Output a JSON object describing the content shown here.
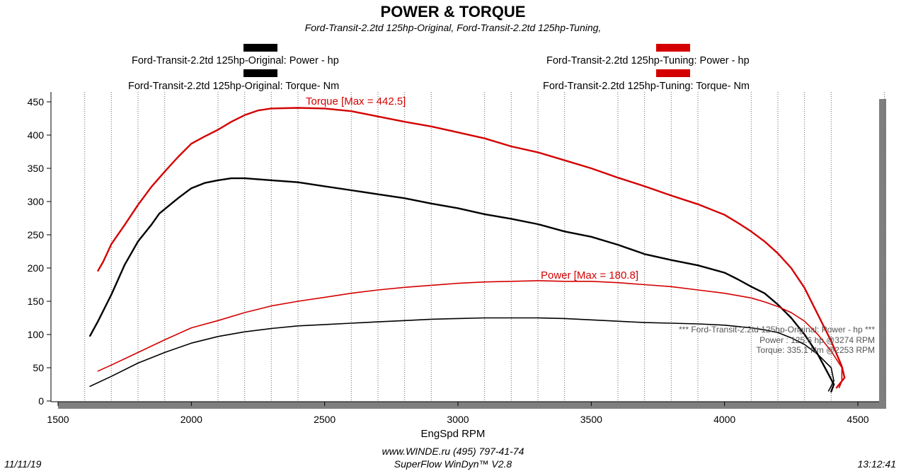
{
  "chart_data": {
    "type": "line",
    "title": "POWER & TORQUE",
    "subtitle": "Ford-Transit-2.2td 125hp-Original, Ford-Transit-2.2td 125hp-Tuning,",
    "xlabel": "EngSpd  RPM",
    "ylabel": "",
    "xlim": [
      1500,
      4600
    ],
    "ylim": [
      0,
      450
    ],
    "xticks": [
      1500,
      2000,
      2500,
      3000,
      3500,
      4000,
      4500
    ],
    "yticks": [
      0,
      50,
      100,
      150,
      200,
      250,
      300,
      350,
      400,
      450
    ],
    "grid": "vertical dotted every 100 RPM",
    "legend": {
      "original_power": "Ford-Transit-2.2td 125hp-Original: Power -  hp",
      "original_torque": "Ford-Transit-2.2td 125hp-Original: Torque-  Nm",
      "tuning_power": "Ford-Transit-2.2td 125hp-Tuning: Power -  hp",
      "tuning_torque": "Ford-Transit-2.2td 125hp-Tuning: Torque-  Nm"
    },
    "colors": {
      "original": "#000000",
      "tuning": "#d40000",
      "shadow": "#7f7f7f"
    },
    "series": [
      {
        "name": "Ford-Transit-2.2td 125hp-Original: Torque-  Nm",
        "color": "#000000",
        "points": [
          [
            1620,
            98
          ],
          [
            1650,
            120
          ],
          [
            1700,
            160
          ],
          [
            1750,
            205
          ],
          [
            1800,
            240
          ],
          [
            1850,
            265
          ],
          [
            1880,
            282
          ],
          [
            1950,
            305
          ],
          [
            2000,
            320
          ],
          [
            2050,
            328
          ],
          [
            2100,
            332
          ],
          [
            2150,
            335
          ],
          [
            2200,
            335
          ],
          [
            2300,
            332
          ],
          [
            2400,
            329
          ],
          [
            2500,
            323
          ],
          [
            2600,
            317
          ],
          [
            2700,
            311
          ],
          [
            2800,
            305
          ],
          [
            2900,
            297
          ],
          [
            3000,
            290
          ],
          [
            3100,
            281
          ],
          [
            3200,
            274
          ],
          [
            3300,
            266
          ],
          [
            3400,
            255
          ],
          [
            3500,
            247
          ],
          [
            3600,
            235
          ],
          [
            3700,
            221
          ],
          [
            3800,
            212
          ],
          [
            3900,
            204
          ],
          [
            4000,
            193
          ],
          [
            4050,
            183
          ],
          [
            4100,
            172
          ],
          [
            4150,
            162
          ],
          [
            4200,
            145
          ],
          [
            4250,
            125
          ],
          [
            4300,
            100
          ],
          [
            4350,
            70
          ],
          [
            4390,
            40
          ],
          [
            4410,
            25
          ],
          [
            4400,
            14
          ]
        ]
      },
      {
        "name": "Ford-Transit-2.2td 125hp-Tuning: Torque-  Nm",
        "color": "#d40000",
        "points": [
          [
            1650,
            196
          ],
          [
            1670,
            210
          ],
          [
            1700,
            236
          ],
          [
            1750,
            265
          ],
          [
            1800,
            295
          ],
          [
            1850,
            322
          ],
          [
            1900,
            345
          ],
          [
            1950,
            367
          ],
          [
            2000,
            387
          ],
          [
            2050,
            398
          ],
          [
            2100,
            408
          ],
          [
            2150,
            420
          ],
          [
            2200,
            430
          ],
          [
            2250,
            437
          ],
          [
            2300,
            440
          ],
          [
            2400,
            441
          ],
          [
            2500,
            440
          ],
          [
            2600,
            436
          ],
          [
            2700,
            428
          ],
          [
            2800,
            420
          ],
          [
            2900,
            413
          ],
          [
            3000,
            404
          ],
          [
            3100,
            395
          ],
          [
            3200,
            383
          ],
          [
            3300,
            374
          ],
          [
            3400,
            362
          ],
          [
            3500,
            350
          ],
          [
            3600,
            336
          ],
          [
            3700,
            323
          ],
          [
            3800,
            309
          ],
          [
            3900,
            296
          ],
          [
            4000,
            280
          ],
          [
            4050,
            268
          ],
          [
            4100,
            255
          ],
          [
            4150,
            240
          ],
          [
            4200,
            222
          ],
          [
            4250,
            200
          ],
          [
            4300,
            170
          ],
          [
            4350,
            130
          ],
          [
            4400,
            90
          ],
          [
            4440,
            52
          ],
          [
            4450,
            35
          ],
          [
            4420,
            20
          ]
        ]
      },
      {
        "name": "Ford-Transit-2.2td 125hp-Original: Power -  hp",
        "color": "#000000",
        "points": [
          [
            1620,
            22
          ],
          [
            1700,
            37
          ],
          [
            1800,
            57
          ],
          [
            1900,
            73
          ],
          [
            2000,
            87
          ],
          [
            2100,
            97
          ],
          [
            2200,
            104
          ],
          [
            2300,
            109
          ],
          [
            2400,
            113
          ],
          [
            2500,
            115
          ],
          [
            2600,
            117
          ],
          [
            2700,
            119
          ],
          [
            2800,
            121
          ],
          [
            2900,
            123
          ],
          [
            3000,
            124
          ],
          [
            3100,
            125
          ],
          [
            3200,
            125
          ],
          [
            3300,
            125
          ],
          [
            3400,
            124
          ],
          [
            3500,
            122
          ],
          [
            3600,
            120
          ],
          [
            3700,
            118
          ],
          [
            3800,
            117
          ],
          [
            3900,
            116
          ],
          [
            4000,
            114
          ],
          [
            4100,
            110
          ],
          [
            4150,
            107
          ],
          [
            4200,
            103
          ],
          [
            4250,
            95
          ],
          [
            4300,
            85
          ],
          [
            4350,
            70
          ],
          [
            4400,
            50
          ],
          [
            4410,
            30
          ],
          [
            4390,
            15
          ]
        ]
      },
      {
        "name": "Ford-Transit-2.2td 125hp-Tuning: Power -  hp",
        "color": "#d40000",
        "points": [
          [
            1650,
            45
          ],
          [
            1700,
            54
          ],
          [
            1800,
            73
          ],
          [
            1900,
            92
          ],
          [
            2000,
            110
          ],
          [
            2100,
            121
          ],
          [
            2200,
            133
          ],
          [
            2300,
            143
          ],
          [
            2400,
            150
          ],
          [
            2500,
            156
          ],
          [
            2600,
            162
          ],
          [
            2700,
            167
          ],
          [
            2800,
            171
          ],
          [
            2900,
            174
          ],
          [
            3000,
            177
          ],
          [
            3100,
            179
          ],
          [
            3200,
            180
          ],
          [
            3300,
            181
          ],
          [
            3400,
            180
          ],
          [
            3500,
            180
          ],
          [
            3600,
            178
          ],
          [
            3700,
            175
          ],
          [
            3800,
            172
          ],
          [
            3900,
            167
          ],
          [
            4000,
            162
          ],
          [
            4100,
            155
          ],
          [
            4150,
            149
          ],
          [
            4200,
            142
          ],
          [
            4250,
            133
          ],
          [
            4300,
            120
          ],
          [
            4350,
            100
          ],
          [
            4400,
            75
          ],
          [
            4440,
            50
          ],
          [
            4440,
            30
          ],
          [
            4430,
            20
          ]
        ]
      }
    ],
    "annotations": {
      "torque_max": "Torque [Max = 442.5]",
      "power_max": "Power  [Max = 180.8]",
      "summary_header": "*** Ford-Transit-2.2td 125hp-Original: Power -  hp   ***",
      "summary_power": "Power :  125.6 hp     @3274 RPM",
      "summary_torque": "Torque:  335.1 Nm     @2253 RPM"
    }
  },
  "footer": {
    "line1": "www.WINDE.ru   (495) 797-41-74",
    "line2": "SuperFlow WinDyn™  V2.8",
    "date": "11/11/19",
    "time": "13:12:41"
  }
}
